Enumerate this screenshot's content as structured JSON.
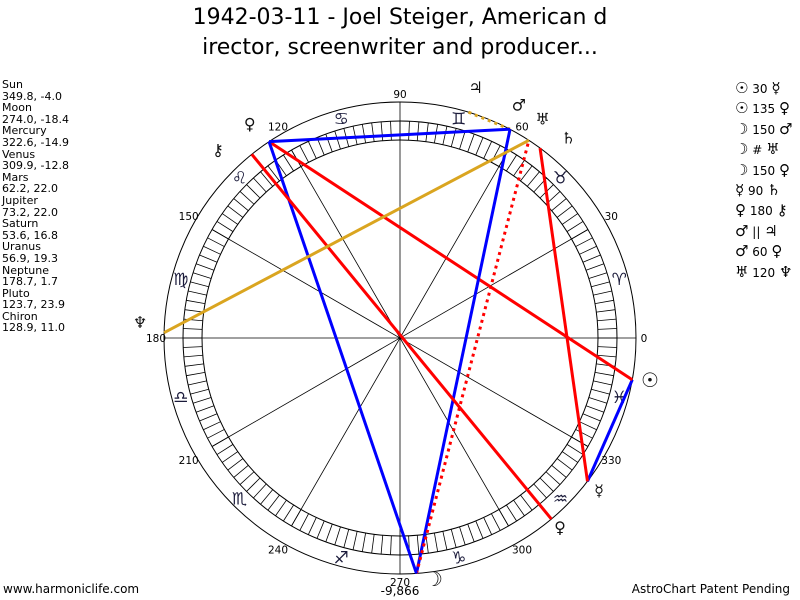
{
  "title": {
    "line1": "1942-03-11 - Joel Steiger, American d",
    "line2": "irector, screenwriter and producer..."
  },
  "planets": [
    {
      "name": "Sun",
      "glyph": "☉",
      "coords": "349.8, -4.0",
      "longitude": 349.8
    },
    {
      "name": "Moon",
      "glyph": "☽",
      "coords": "274.0, -18.4",
      "longitude": 274.0
    },
    {
      "name": "Mercury",
      "glyph": "☿",
      "coords": "322.6, -14.9",
      "longitude": 322.6
    },
    {
      "name": "Venus",
      "glyph": "♀",
      "coords": "309.9, -12.8",
      "longitude": 309.9
    },
    {
      "name": "Mars",
      "glyph": "♂",
      "coords": "62.2, 22.0",
      "longitude": 62.2
    },
    {
      "name": "Jupiter",
      "glyph": "♃",
      "coords": "73.2, 22.0",
      "longitude": 73.2
    },
    {
      "name": "Saturn",
      "glyph": "♄",
      "coords": "53.6, 16.8",
      "longitude": 53.6
    },
    {
      "name": "Uranus",
      "glyph": "♅",
      "coords": "56.9, 19.3",
      "longitude": 56.9
    },
    {
      "name": "Neptune",
      "glyph": "♆",
      "coords": "178.7, 1.7",
      "longitude": 178.7
    },
    {
      "name": "Pluto",
      "glyph": "♀",
      "coords": "123.7, 23.9",
      "longitude": 123.7
    },
    {
      "name": "Chiron",
      "glyph": "⚷",
      "coords": "128.9, 11.0",
      "longitude": 128.9
    }
  ],
  "aspects": [
    {
      "p1": "Sun",
      "g1": "☉",
      "aspect": "30",
      "p2": "Mercury",
      "g2": "☿",
      "color": "#0000ff",
      "dotted": false
    },
    {
      "p1": "Sun",
      "g1": "☉",
      "aspect": "135",
      "p2": "Pluto",
      "g2": "♀",
      "color": "#ff0000",
      "dotted": false
    },
    {
      "p1": "Moon",
      "g1": "☽",
      "aspect": "150",
      "p2": "Mars",
      "g2": "♂",
      "color": "#0000ff",
      "dotted": false
    },
    {
      "p1": "Moon",
      "g1": "☽",
      "aspect": "#",
      "p2": "Uranus",
      "g2": "♅",
      "color": "#ff0000",
      "dotted": true
    },
    {
      "p1": "Moon",
      "g1": "☽",
      "aspect": "150",
      "p2": "Pluto",
      "g2": "♀",
      "color": "#0000ff",
      "dotted": false
    },
    {
      "p1": "Mercury",
      "g1": "☿",
      "aspect": "90",
      "p2": "Saturn",
      "g2": "♄",
      "color": "#ff0000",
      "dotted": false
    },
    {
      "p1": "Venus",
      "g1": "♀",
      "aspect": "180",
      "p2": "Chiron",
      "g2": "⚷",
      "color": "#ff0000",
      "dotted": false
    },
    {
      "p1": "Mars",
      "g1": "♂",
      "aspect": "||",
      "p2": "Jupiter",
      "g2": "♃",
      "color": "#daa520",
      "dotted": true
    },
    {
      "p1": "Mars",
      "g1": "♂",
      "aspect": "60",
      "p2": "Pluto",
      "g2": "♀",
      "color": "#0000ff",
      "dotted": false
    },
    {
      "p1": "Uranus",
      "g1": "♅",
      "aspect": "120",
      "p2": "Neptune",
      "g2": "♆",
      "color": "#daa520",
      "dotted": false
    }
  ],
  "zodiac": [
    "♈",
    "♉",
    "♊",
    "♋",
    "♌",
    "♍",
    "♎",
    "♏",
    "♐",
    "♑",
    "♒",
    "♓"
  ],
  "degree_labels": [
    "0",
    "30",
    "60",
    "90",
    "120",
    "150",
    "180",
    "210",
    "240",
    "270",
    "300",
    "330"
  ],
  "bottom_value": "-9,866",
  "footer": {
    "left": "www.harmoniclife.com",
    "right": "AstroChart Patent Pending"
  }
}
